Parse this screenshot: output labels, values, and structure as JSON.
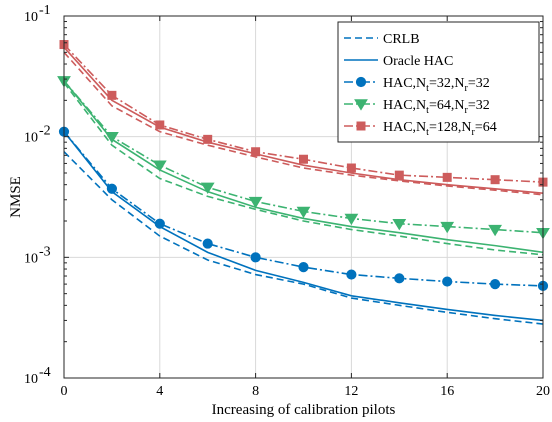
{
  "chart_data": {
    "type": "line",
    "xlabel": "Increasing of calibration pilots",
    "ylabel": "NMSE",
    "xlim": [
      0,
      20
    ],
    "ylim": [
      0.0001,
      0.1
    ],
    "yscale": "log",
    "grid": true,
    "legend_position": "top-right",
    "x_ticks": [
      0,
      4,
      8,
      12,
      16,
      20
    ],
    "x_tick_labels": [
      "0",
      "4",
      "8",
      "12",
      "16",
      "20"
    ],
    "y_ticks": [
      0.0001,
      0.001,
      0.01,
      0.1
    ],
    "y_tick_labels": [
      {
        "base": "10",
        "exp": "-4"
      },
      {
        "base": "10",
        "exp": "-3"
      },
      {
        "base": "10",
        "exp": "-2"
      },
      {
        "base": "10",
        "exp": "-1"
      }
    ],
    "x": [
      0,
      2,
      4,
      6,
      8,
      10,
      12,
      14,
      16,
      18,
      20
    ],
    "series": [
      {
        "group": 1,
        "style": "crlb",
        "color": "#0072BD",
        "marker": "none",
        "linestyle": "dashed",
        "values": [
          0.0075,
          0.003,
          0.0015,
          0.00095,
          0.00072,
          0.0006,
          0.00046,
          0.0004,
          0.00035,
          0.00031,
          0.00028
        ]
      },
      {
        "group": 1,
        "style": "oracle",
        "color": "#0072BD",
        "marker": "none",
        "linestyle": "solid",
        "values": [
          0.011,
          0.0035,
          0.0018,
          0.0011,
          0.00078,
          0.00062,
          0.00048,
          0.00042,
          0.00037,
          0.00033,
          0.0003
        ]
      },
      {
        "group": 1,
        "style": "hac",
        "color": "#0072BD",
        "marker": "circle",
        "linestyle": "dashdot",
        "values": [
          0.011,
          0.0037,
          0.0019,
          0.0013,
          0.001,
          0.00083,
          0.00072,
          0.00067,
          0.00063,
          0.0006,
          0.00058
        ]
      },
      {
        "group": 2,
        "style": "crlb",
        "color": "#3CB371",
        "marker": "none",
        "linestyle": "dashed",
        "values": [
          0.028,
          0.0085,
          0.0045,
          0.0032,
          0.0025,
          0.002,
          0.0017,
          0.0015,
          0.0013,
          0.00115,
          0.00105
        ]
      },
      {
        "group": 2,
        "style": "oracle",
        "color": "#3CB371",
        "marker": "none",
        "linestyle": "solid",
        "values": [
          0.029,
          0.0095,
          0.0053,
          0.0035,
          0.0026,
          0.0021,
          0.0018,
          0.0016,
          0.0014,
          0.00125,
          0.0011
        ]
      },
      {
        "group": 2,
        "style": "hac",
        "color": "#3CB371",
        "marker": "triangle",
        "linestyle": "dashdot",
        "values": [
          0.029,
          0.01,
          0.0058,
          0.0038,
          0.0029,
          0.0024,
          0.0021,
          0.0019,
          0.0018,
          0.0017,
          0.0016
        ]
      },
      {
        "group": 3,
        "style": "crlb",
        "color": "#CD5C5C",
        "marker": "none",
        "linestyle": "dashed",
        "values": [
          0.05,
          0.018,
          0.011,
          0.0085,
          0.0068,
          0.0055,
          0.0048,
          0.0043,
          0.0039,
          0.0036,
          0.0033
        ]
      },
      {
        "group": 3,
        "style": "oracle",
        "color": "#CD5C5C",
        "marker": "none",
        "linestyle": "solid",
        "values": [
          0.055,
          0.02,
          0.012,
          0.009,
          0.0072,
          0.0058,
          0.005,
          0.0044,
          0.004,
          0.0037,
          0.0034
        ]
      },
      {
        "group": 3,
        "style": "hac",
        "color": "#CD5C5C",
        "marker": "square",
        "linestyle": "dashdot",
        "values": [
          0.058,
          0.022,
          0.0125,
          0.0095,
          0.0075,
          0.0065,
          0.0055,
          0.0048,
          0.0046,
          0.0044,
          0.0042
        ]
      }
    ],
    "legend": [
      {
        "label": "CRLB",
        "sub": [],
        "color": "#0072BD",
        "linestyle": "dashed",
        "marker": "none"
      },
      {
        "label": "Oracle HAC",
        "sub": [],
        "color": "#0072BD",
        "linestyle": "solid",
        "marker": "none"
      },
      {
        "label": "HAC,N",
        "sub": [
          {
            "s": "t",
            "v": "=32,N"
          },
          {
            "s": "r",
            "v": "=32"
          }
        ],
        "color": "#0072BD",
        "linestyle": "dashdot",
        "marker": "circle"
      },
      {
        "label": "HAC,N",
        "sub": [
          {
            "s": "t",
            "v": "=64,N"
          },
          {
            "s": "r",
            "v": "=32"
          }
        ],
        "color": "#3CB371",
        "linestyle": "dashdot",
        "marker": "triangle"
      },
      {
        "label": "HAC,N",
        "sub": [
          {
            "s": "t",
            "v": "=128,N"
          },
          {
            "s": "r",
            "v": "=64"
          }
        ],
        "color": "#CD5C5C",
        "linestyle": "dashdot",
        "marker": "square"
      }
    ]
  }
}
